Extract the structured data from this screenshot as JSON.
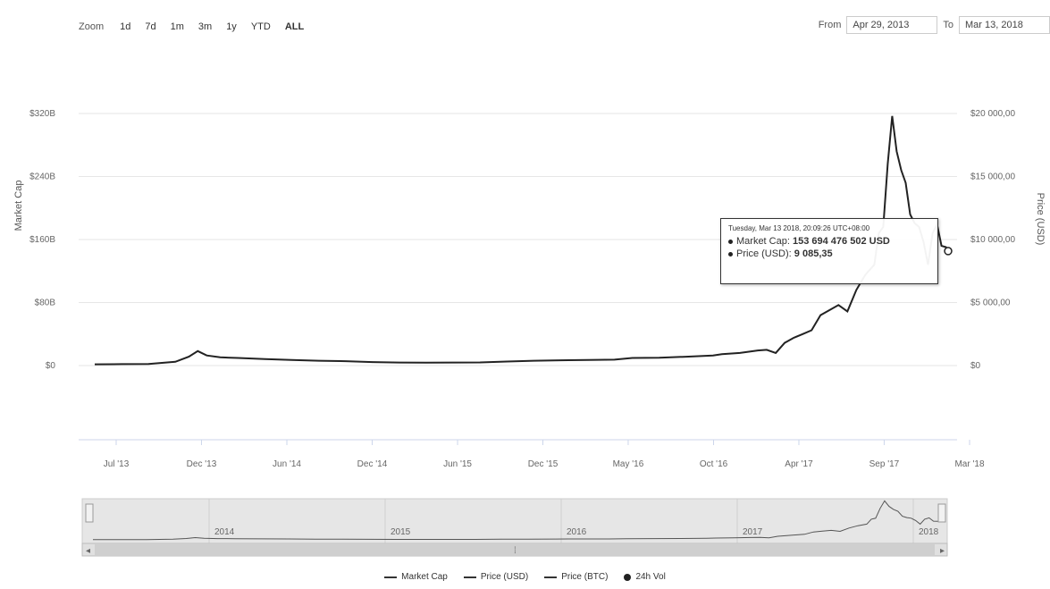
{
  "zoom": {
    "label": "Zoom",
    "buttons": [
      "1d",
      "7d",
      "1m",
      "3m",
      "1y",
      "YTD",
      "ALL"
    ],
    "active": "ALL"
  },
  "range": {
    "from_label": "From",
    "from_value": "Apr 29, 2013",
    "to_label": "To",
    "to_value": "Mar 13, 2018"
  },
  "tooltip": {
    "date": "Tuesday, Mar 13 2018, 20:09:26 UTC+08:00",
    "market_cap_label": "Market Cap:",
    "market_cap_value": "153 694 476 502 USD",
    "price_label": "Price (USD):",
    "price_value": "9 085,35"
  },
  "navigator": {
    "years": [
      "2014",
      "2015",
      "2016",
      "2017",
      "2018"
    ]
  },
  "legend": {
    "items": [
      {
        "label": "Market Cap",
        "kind": "line"
      },
      {
        "label": "Price (USD)",
        "kind": "line"
      },
      {
        "label": "Price (BTC)",
        "kind": "line"
      },
      {
        "label": "24h Vol",
        "kind": "dot"
      }
    ]
  },
  "chart_data": {
    "type": "line",
    "ylabel": "Market Cap",
    "y2label": "Price (USD)",
    "left_ticks": [
      "$0",
      "$80B",
      "$160B",
      "$240B",
      "$320B"
    ],
    "right_ticks": [
      "$0",
      "$5 000,00",
      "$10 000,00",
      "$15 000,00",
      "$20 000,00"
    ],
    "x_ticks": [
      "Jul '13",
      "Dec '13",
      "Jun '14",
      "Dec '14",
      "Jun '15",
      "Dec '15",
      "May '16",
      "Oct '16",
      "Apr '17",
      "Sep '17",
      "Mar '18"
    ],
    "x_ticks_t": [
      0.0,
      0.0952,
      0.1905,
      0.2857,
      0.381,
      0.4762,
      0.5714,
      0.6667,
      0.7619,
      0.8571,
      0.9524
    ],
    "x_ticks_t_offset": 0.0,
    "x_span": 0.9524,
    "left_range": [
      0,
      320
    ],
    "right_range": [
      0,
      20000
    ],
    "series": [
      {
        "name": "Price (USD)",
        "x": [
          0.0,
          0.03,
          0.06,
          0.09,
          0.105,
          0.115,
          0.125,
          0.14,
          0.16,
          0.19,
          0.22,
          0.25,
          0.28,
          0.31,
          0.34,
          0.37,
          0.4,
          0.43,
          0.46,
          0.49,
          0.52,
          0.55,
          0.58,
          0.6,
          0.63,
          0.66,
          0.69,
          0.7,
          0.72,
          0.74,
          0.75,
          0.76,
          0.77,
          0.78,
          0.79,
          0.8,
          0.81,
          0.82,
          0.83,
          0.84,
          0.85,
          0.86,
          0.87,
          0.875,
          0.88,
          0.885,
          0.89,
          0.895,
          0.9,
          0.905,
          0.91,
          0.915,
          0.92,
          0.925,
          0.93,
          0.935,
          0.94,
          0.945,
          0.95,
          0.9524
        ],
        "y": [
          100,
          110,
          120,
          300,
          700,
          1150,
          800,
          650,
          600,
          520,
          450,
          380,
          350,
          280,
          240,
          230,
          240,
          250,
          320,
          380,
          420,
          450,
          470,
          600,
          620,
          700,
          800,
          900,
          1000,
          1200,
          1250,
          1000,
          1800,
          2200,
          2500,
          2800,
          4000,
          4400,
          4800,
          4300,
          6000,
          7200,
          8000,
          10500,
          11000,
          16000,
          19800,
          17000,
          15500,
          14500,
          12000,
          11300,
          11000,
          9800,
          8000,
          10500,
          11200,
          9500,
          9400,
          9085.35
        ]
      }
    ]
  }
}
